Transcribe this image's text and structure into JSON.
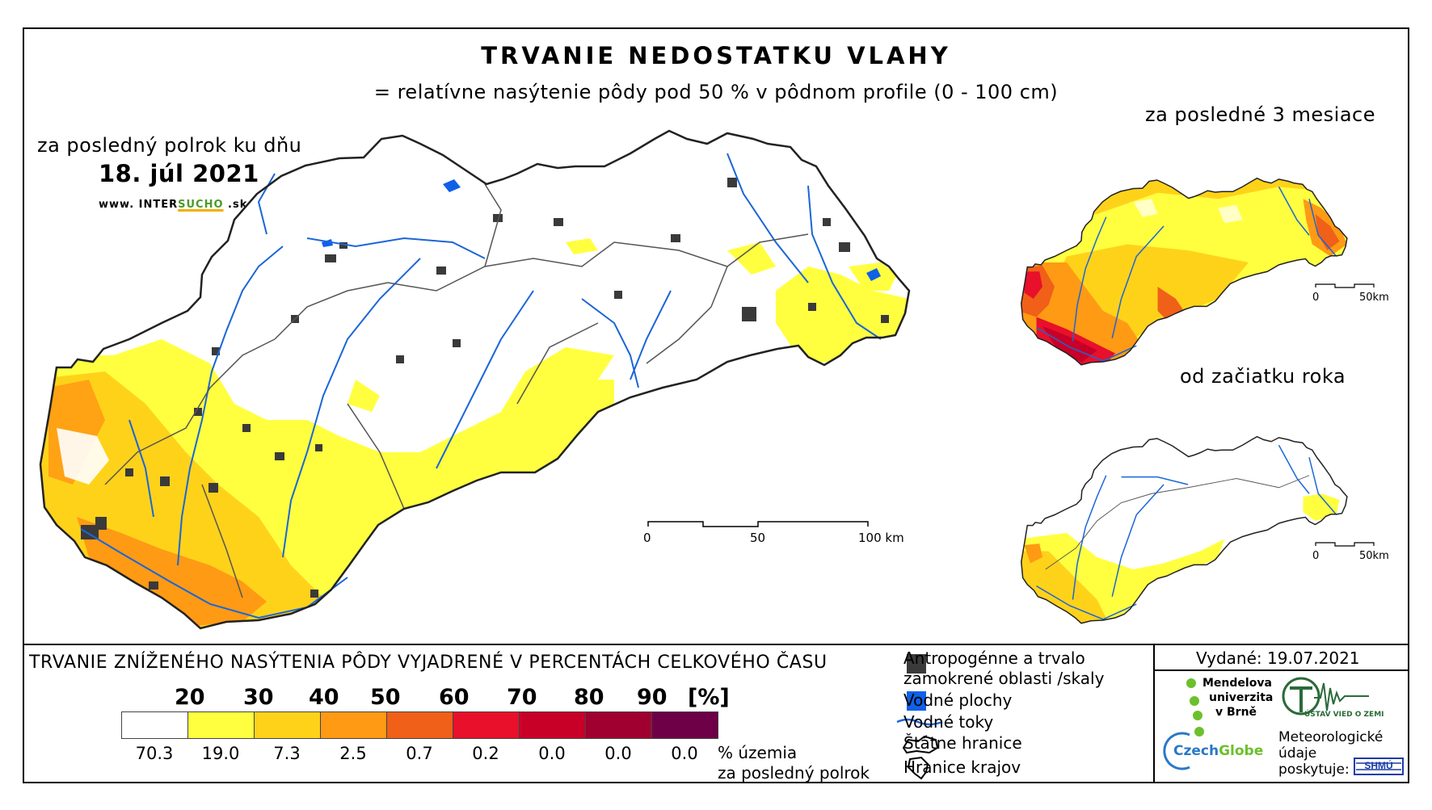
{
  "header": {
    "title": "TRVANIE NEDOSTATKU VLAHY",
    "subtitle": "= relatívne nasýtenie pôdy pod 50 % v pôdnom profile (0 - 100 cm)"
  },
  "main_map": {
    "period_label": "za posledný polrok ku dňu",
    "date": "18. júl 2021",
    "url_prefix": "www. INTER",
    "url_green": "SUCHO",
    "url_suffix": " .sk",
    "scale": {
      "ticks": [
        "0",
        "50",
        "100 km"
      ]
    }
  },
  "inset_3_months": {
    "label": "za posledné 3 mesiace",
    "scale": {
      "ticks": [
        "0",
        "50km"
      ]
    }
  },
  "inset_year": {
    "label": "od začiatku roka",
    "scale": {
      "ticks": [
        "0",
        "50km"
      ]
    }
  },
  "legend": {
    "title": "TRVANIE ZNÍŽENÉHO NASÝTENIA PÔDY VYJADRENÉ V PERCENTÁCH CELKOVÉHO ČASU",
    "ticks": [
      "20",
      "30",
      "40",
      "50",
      "60",
      "70",
      "80",
      "90",
      "[%]"
    ],
    "classes": [
      {
        "color": "#ffffff",
        "percent": "70.3"
      },
      {
        "color": "#ffff40",
        "percent": "19.0"
      },
      {
        "color": "#ffd21a",
        "percent": "7.3"
      },
      {
        "color": "#ff9a14",
        "percent": "2.5"
      },
      {
        "color": "#f06018",
        "percent": "0.7"
      },
      {
        "color": "#e8102a",
        "percent": "0.2"
      },
      {
        "color": "#c80028",
        "percent": "0.0"
      },
      {
        "color": "#a00030",
        "percent": "0.0"
      },
      {
        "color": "#6e0048",
        "percent": "0.0"
      }
    ],
    "unit_line1": "% územia",
    "unit_line2": "za posledný polrok",
    "symbols": [
      {
        "icon": "dark-square-icon",
        "label_line1": "Antropogénne a trvalo",
        "label_line2": "zamokrené oblasti /skaly",
        "color": "#3a3a3a"
      },
      {
        "icon": "blue-square-icon",
        "label_line1": "Vodné plochy",
        "label_line2": "",
        "color": "#1060e8"
      },
      {
        "icon": "river-line-icon",
        "label_line1": "Vodné toky",
        "label_line2": "",
        "color": "#1a66d8"
      },
      {
        "icon": "state-border-icon",
        "label_line1": "Štátne hranice",
        "label_line2": ""
      },
      {
        "icon": "region-border-icon",
        "label_line1": "Hranice krajov",
        "label_line2": ""
      }
    ]
  },
  "credits": {
    "issued": "Vydané: 19.07.2021",
    "mendel_1": "Mendelova",
    "mendel_2": "univerzita",
    "mendel_3": "v Brně",
    "czechglobe_a": "Czech",
    "czechglobe_b": "Globe",
    "uvgz": "ÚSTAV VIED O ZEMI",
    "met_1": "Meteorologické",
    "met_2": "údaje",
    "met_3": "poskytuje:",
    "shmu": "SHMÚ"
  },
  "colors": {
    "river": "#1a66d8",
    "urban": "#3a3a3a",
    "water": "#1060e8",
    "border": "#222222"
  }
}
